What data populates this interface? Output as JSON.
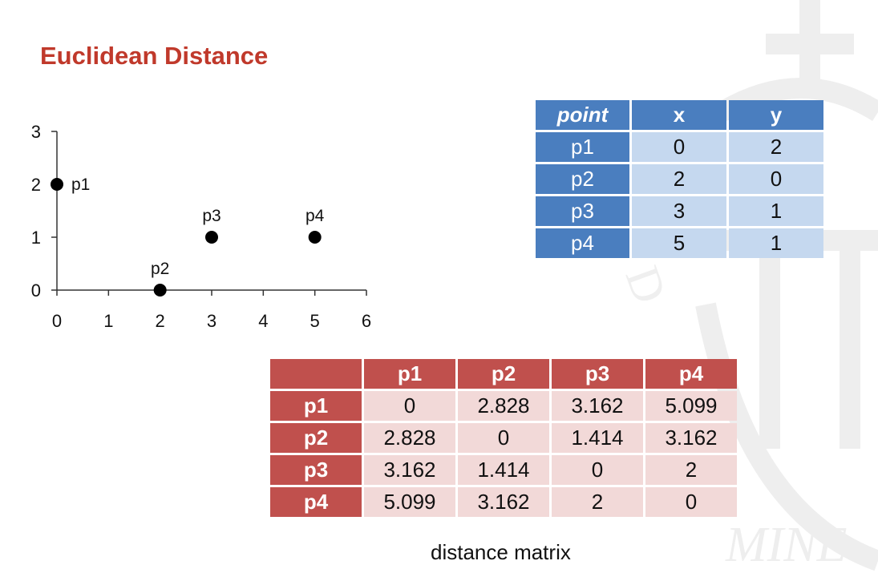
{
  "title": "Euclidean Distance",
  "chart_data": {
    "type": "scatter",
    "title": "",
    "xlabel": "",
    "ylabel": "",
    "xlim": [
      0,
      6
    ],
    "ylim": [
      0,
      3
    ],
    "xticks": [
      0,
      1,
      2,
      3,
      4,
      5,
      6
    ],
    "yticks": [
      0,
      1,
      2,
      3
    ],
    "grid": false,
    "points": [
      {
        "label": "p1",
        "x": 0,
        "y": 2
      },
      {
        "label": "p2",
        "x": 2,
        "y": 0
      },
      {
        "label": "p3",
        "x": 3,
        "y": 1
      },
      {
        "label": "p4",
        "x": 5,
        "y": 1
      }
    ]
  },
  "points_table": {
    "headers": [
      "point",
      "x",
      "y"
    ],
    "rows": [
      [
        "p1",
        "0",
        "2"
      ],
      [
        "p2",
        "2",
        "0"
      ],
      [
        "p3",
        "3",
        "1"
      ],
      [
        "p4",
        "5",
        "1"
      ]
    ]
  },
  "distance_matrix": {
    "headers": [
      "",
      "p1",
      "p2",
      "p3",
      "p4"
    ],
    "rows": [
      [
        "p1",
        "0",
        "2.828",
        "3.162",
        "5.099"
      ],
      [
        "p2",
        "2.828",
        "0",
        "1.414",
        "3.162"
      ],
      [
        "p3",
        "3.162",
        "1.414",
        "0",
        "2"
      ],
      [
        "p4",
        "5.099",
        "3.162",
        "2",
        "0"
      ]
    ],
    "caption": "distance matrix"
  },
  "watermark_text": "D O MINE",
  "colors": {
    "title": "#c0392b",
    "points_header": "#4a7ebf",
    "points_cell": "#c5d8ef",
    "matrix_header": "#c0504d",
    "matrix_cell": "#f2d9d8"
  }
}
